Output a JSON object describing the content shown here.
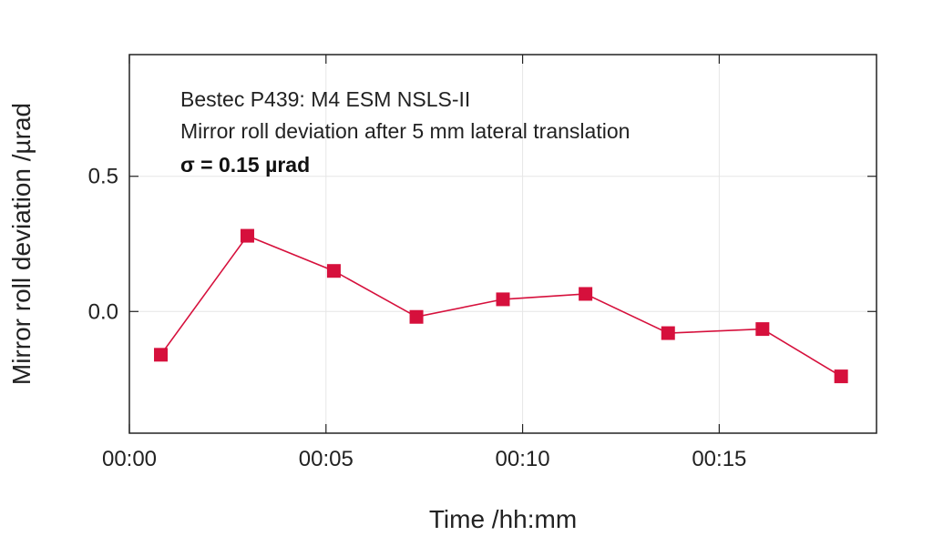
{
  "chart_data": {
    "type": "line",
    "xlabel": "Time /hh:mm",
    "ylabel": "Mirror roll deviation /µrad",
    "x_unit": "minutes",
    "xlim": [
      0,
      19
    ],
    "ylim": [
      -0.45,
      0.95
    ],
    "x_ticks": [
      {
        "value": 0,
        "label": "00:00"
      },
      {
        "value": 5,
        "label": "00:05"
      },
      {
        "value": 10,
        "label": "00:10"
      },
      {
        "value": 15,
        "label": "00:15"
      }
    ],
    "y_ticks": [
      {
        "value": 0.5,
        "label": "0.5"
      },
      {
        "value": 0.0,
        "label": "0.0"
      }
    ],
    "grid": true,
    "legend": "none",
    "annotations": [
      "Bestec P439: M4 ESM NSLS-II",
      "Mirror roll deviation after 5 mm lateral translation",
      "σ = 0.15 µrad"
    ],
    "series": [
      {
        "color": "#d6103c",
        "marker": "square",
        "points": [
          {
            "x": 0.8,
            "y": -0.16
          },
          {
            "x": 3.0,
            "y": 0.28
          },
          {
            "x": 5.2,
            "y": 0.15
          },
          {
            "x": 7.3,
            "y": -0.02
          },
          {
            "x": 9.5,
            "y": 0.045
          },
          {
            "x": 11.6,
            "y": 0.065
          },
          {
            "x": 13.7,
            "y": -0.08
          },
          {
            "x": 16.1,
            "y": -0.065
          },
          {
            "x": 18.1,
            "y": -0.24
          }
        ]
      }
    ]
  }
}
